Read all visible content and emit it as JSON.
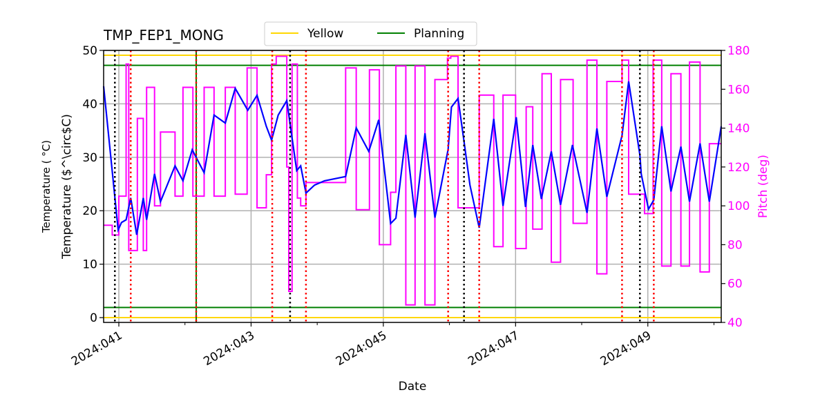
{
  "chart_data": {
    "type": "line",
    "title": "TMP_FEP1_MONG",
    "xlabel": "Date",
    "ylabel": "Temperature ($^\\circ$C)",
    "ylabel_display": "Temperature ( °C)",
    "y2label": "Pitch (deg)",
    "xlim": [
      40.77,
      50.11
    ],
    "ylim": [
      -0.9,
      50
    ],
    "y2lim": [
      40,
      180
    ],
    "grid": true,
    "legend_placement": "top-center",
    "x_ticks": [
      {
        "value": 41,
        "label": "2024:041"
      },
      {
        "value": 43,
        "label": "2024:043"
      },
      {
        "value": 45,
        "label": "2024:045"
      },
      {
        "value": 47,
        "label": "2024:047"
      },
      {
        "value": 49,
        "label": "2024:049"
      }
    ],
    "x_minor_ticks": [
      42,
      44,
      46,
      48,
      50
    ],
    "y_ticks": [
      "0",
      "10",
      "20",
      "30",
      "40",
      "50"
    ],
    "y2_ticks": [
      "40",
      "60",
      "80",
      "100",
      "120",
      "140",
      "160",
      "180"
    ],
    "colors": {
      "temperature": "#0000ff",
      "pitch": "#ff00ff",
      "yellow": "#ffd700",
      "planning": "#008000",
      "red_event": "#ff0000",
      "black_event": "#000000",
      "y2axis": "#ff00ff"
    },
    "legend": [
      {
        "name": "Yellow",
        "color": "#ffd700"
      },
      {
        "name": "Planning",
        "color": "#008000"
      }
    ],
    "limit_lines": {
      "yellow": [
        0,
        49.1
      ],
      "planning": [
        1.9,
        47.2
      ]
    },
    "green_vertical": [
      42.17
    ],
    "red_vertical": [
      41.18,
      42.17,
      43.32,
      43.83,
      45.98,
      46.45,
      48.61,
      49.09
    ],
    "black_vertical": [
      40.94,
      43.59,
      46.22,
      48.88
    ],
    "temperature": [
      [
        40.77,
        43.3
      ],
      [
        40.99,
        16.4
      ],
      [
        41.04,
        17.8
      ],
      [
        41.11,
        18.3
      ],
      [
        41.18,
        22.4
      ],
      [
        41.27,
        15.5
      ],
      [
        41.37,
        22.4
      ],
      [
        41.42,
        18.3
      ],
      [
        41.54,
        26.9
      ],
      [
        41.63,
        21.7
      ],
      [
        41.85,
        28.4
      ],
      [
        41.97,
        25.6
      ],
      [
        42.11,
        31.4
      ],
      [
        42.29,
        27.1
      ],
      [
        42.44,
        37.9
      ],
      [
        42.61,
        36.4
      ],
      [
        42.76,
        42.9
      ],
      [
        42.95,
        38.8
      ],
      [
        43.09,
        41.6
      ],
      [
        43.23,
        35.8
      ],
      [
        43.31,
        33.2
      ],
      [
        43.41,
        37.9
      ],
      [
        43.54,
        40.6
      ],
      [
        43.62,
        33.6
      ],
      [
        43.69,
        27.5
      ],
      [
        43.75,
        28.4
      ],
      [
        43.83,
        23.3
      ],
      [
        43.96,
        24.8
      ],
      [
        44.11,
        25.6
      ],
      [
        44.43,
        26.4
      ],
      [
        44.59,
        35.5
      ],
      [
        44.78,
        31.1
      ],
      [
        44.93,
        37.0
      ],
      [
        45.11,
        17.6
      ],
      [
        45.19,
        18.6
      ],
      [
        45.34,
        34.2
      ],
      [
        45.48,
        18.7
      ],
      [
        45.63,
        34.5
      ],
      [
        45.78,
        18.7
      ],
      [
        45.98,
        31.5
      ],
      [
        46.03,
        39.4
      ],
      [
        46.13,
        41.0
      ],
      [
        46.22,
        33.0
      ],
      [
        46.31,
        24.8
      ],
      [
        46.45,
        16.8
      ],
      [
        46.67,
        37.2
      ],
      [
        46.81,
        20.9
      ],
      [
        47.01,
        37.5
      ],
      [
        47.15,
        20.7
      ],
      [
        47.26,
        32.3
      ],
      [
        47.39,
        22.2
      ],
      [
        47.54,
        31.1
      ],
      [
        47.68,
        21.1
      ],
      [
        47.86,
        32.3
      ],
      [
        48.08,
        19.6
      ],
      [
        48.23,
        35.4
      ],
      [
        48.38,
        22.6
      ],
      [
        48.61,
        34.1
      ],
      [
        48.71,
        44.2
      ],
      [
        48.88,
        30.4
      ],
      [
        48.9,
        26.9
      ],
      [
        49.01,
        20.3
      ],
      [
        49.09,
        22.0
      ],
      [
        49.21,
        35.8
      ],
      [
        49.35,
        23.6
      ],
      [
        49.5,
        32.0
      ],
      [
        49.63,
        21.7
      ],
      [
        49.79,
        32.6
      ],
      [
        49.93,
        21.7
      ],
      [
        50.11,
        35.8
      ]
    ],
    "pitch_steps": [
      [
        40.77,
        90
      ],
      [
        40.9,
        85
      ],
      [
        41.0,
        105
      ],
      [
        41.11,
        173
      ],
      [
        41.15,
        77
      ],
      [
        41.28,
        145
      ],
      [
        41.37,
        77
      ],
      [
        41.42,
        161
      ],
      [
        41.54,
        100
      ],
      [
        41.63,
        138
      ],
      [
        41.85,
        105
      ],
      [
        41.97,
        161
      ],
      [
        42.12,
        105
      ],
      [
        42.29,
        161
      ],
      [
        42.44,
        105
      ],
      [
        42.61,
        161
      ],
      [
        42.76,
        106
      ],
      [
        42.94,
        171
      ],
      [
        43.09,
        99
      ],
      [
        43.23,
        116
      ],
      [
        43.31,
        173
      ],
      [
        43.38,
        177
      ],
      [
        43.54,
        120
      ],
      [
        43.57,
        56
      ],
      [
        43.62,
        173
      ],
      [
        43.7,
        104
      ],
      [
        43.75,
        100
      ],
      [
        43.83,
        112
      ],
      [
        44.43,
        171
      ],
      [
        44.59,
        98
      ],
      [
        44.79,
        170
      ],
      [
        44.94,
        80
      ],
      [
        45.11,
        107
      ],
      [
        45.19,
        172
      ],
      [
        45.34,
        49
      ],
      [
        45.48,
        172
      ],
      [
        45.63,
        49
      ],
      [
        45.78,
        165
      ],
      [
        45.97,
        176
      ],
      [
        46.02,
        177
      ],
      [
        46.13,
        99
      ],
      [
        46.31,
        99
      ],
      [
        46.45,
        157
      ],
      [
        46.67,
        79
      ],
      [
        46.81,
        157
      ],
      [
        47.0,
        78
      ],
      [
        47.16,
        151
      ],
      [
        47.26,
        88
      ],
      [
        47.4,
        168
      ],
      [
        47.54,
        71
      ],
      [
        47.68,
        165
      ],
      [
        47.87,
        91
      ],
      [
        48.08,
        175
      ],
      [
        48.23,
        65
      ],
      [
        48.38,
        164
      ],
      [
        48.61,
        175
      ],
      [
        48.71,
        106
      ],
      [
        48.95,
        96
      ],
      [
        49.08,
        175
      ],
      [
        49.21,
        69
      ],
      [
        49.35,
        168
      ],
      [
        49.5,
        69
      ],
      [
        49.63,
        174
      ],
      [
        49.79,
        66
      ],
      [
        49.93,
        132
      ],
      [
        50.11,
        132
      ]
    ]
  }
}
